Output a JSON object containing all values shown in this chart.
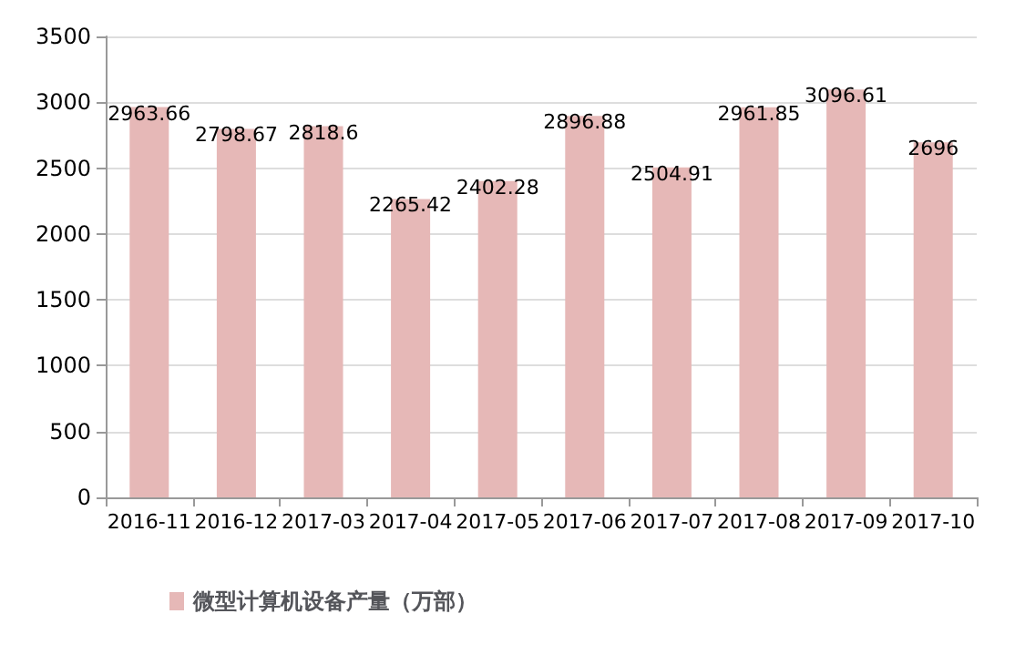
{
  "chart_data": {
    "type": "bar",
    "categories": [
      "2016-11",
      "2016-12",
      "2017-03",
      "2017-04",
      "2017-05",
      "2017-06",
      "2017-07",
      "2017-08",
      "2017-09",
      "2017-10"
    ],
    "series": [
      {
        "name": "微型计算机设备产量（万部）",
        "color": "#e6b8b7",
        "values": [
          2963.66,
          2798.67,
          2818.6,
          2265.42,
          2402.28,
          2896.88,
          2504.91,
          2961.85,
          3096.61,
          2696
        ]
      }
    ],
    "ylim": [
      0,
      3500
    ],
    "yticks": [
      0,
      500,
      1000,
      1500,
      2000,
      2500,
      3000,
      3500
    ],
    "grid": "y",
    "legend": "bottom",
    "data_labels": true
  }
}
